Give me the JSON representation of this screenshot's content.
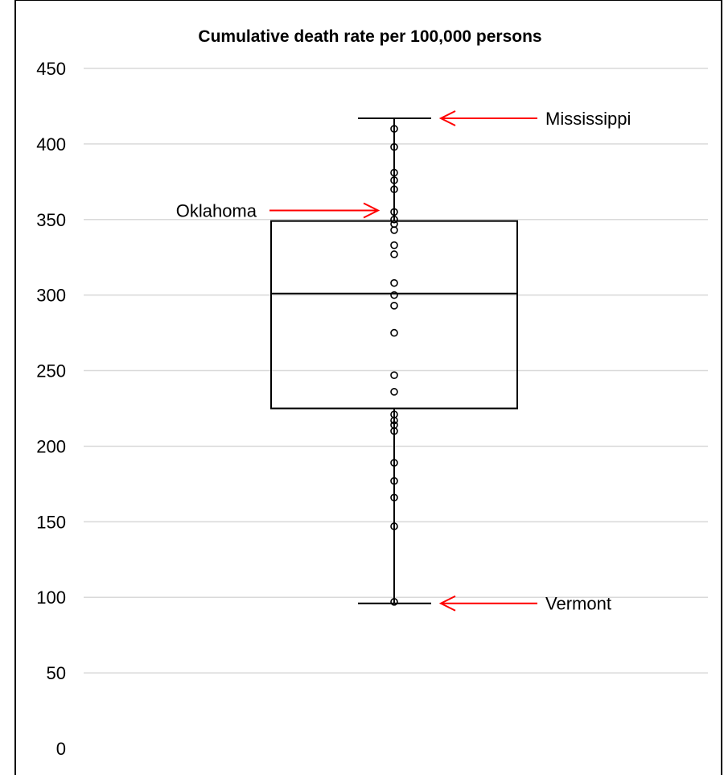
{
  "chart_data": {
    "type": "box",
    "title": "Cumulative death rate per 100,000 persons",
    "ylim": [
      0,
      450
    ],
    "yticks": [
      0,
      50,
      100,
      150,
      200,
      250,
      300,
      350,
      400,
      450
    ],
    "grid": true,
    "box": {
      "min": 96,
      "q1": 225,
      "median": 301,
      "q3": 349,
      "max": 417
    },
    "points": [
      410,
      398,
      381,
      376,
      370,
      355,
      350,
      347,
      343,
      333,
      327,
      308,
      300,
      293,
      275,
      247,
      236,
      221,
      217,
      214,
      210,
      189,
      177,
      166,
      147,
      97
    ],
    "annotations": [
      {
        "label": "Mississippi",
        "value": 417,
        "side": "right"
      },
      {
        "label": "Oklahoma",
        "value": 356,
        "side": "left"
      },
      {
        "label": "Vermont",
        "value": 96,
        "side": "right"
      }
    ],
    "colors": {
      "arrow": "#ff0000",
      "grid": "#d9d9d9"
    }
  }
}
